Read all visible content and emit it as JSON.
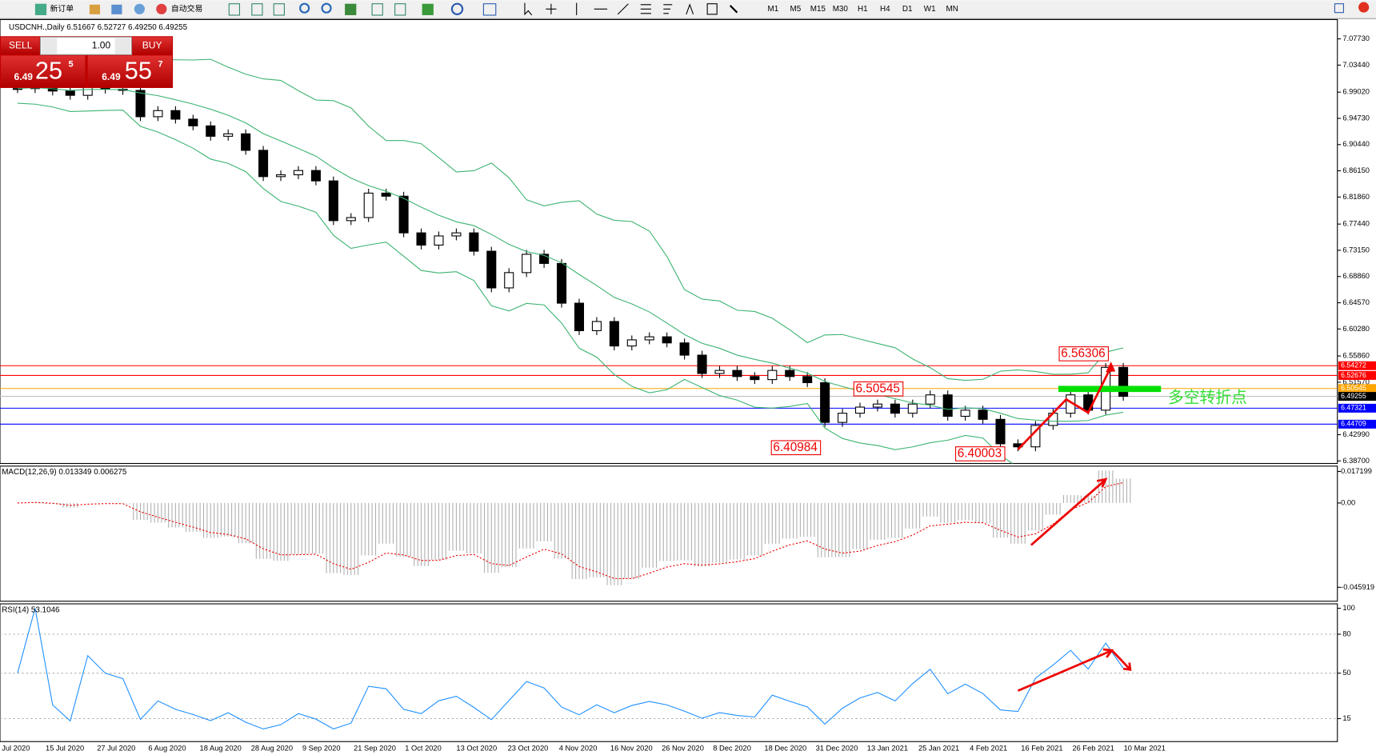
{
  "toolbar": {
    "new_order": "新订单",
    "auto_trading": "自动交易",
    "timeframes": [
      "M1",
      "M5",
      "M15",
      "M30",
      "H1",
      "H4",
      "D1",
      "W1",
      "MN"
    ]
  },
  "trade_panel": {
    "sell": "SELL",
    "buy": "BUY",
    "lot": "1.00",
    "bid_big": "6.49",
    "bid_pips": "25",
    "bid_frac": "5",
    "ask_big": "6.49",
    "ask_pips": "55",
    "ask_frac": "7"
  },
  "chart": {
    "header": "USDCNH.,Daily  6.51667 6.52727 6.49250 6.49255",
    "ylim": [
      6.3828,
      7.1089
    ],
    "price_ticks": [
      {
        "value": 7.0773,
        "label": "7.07730"
      },
      {
        "value": 7.0344,
        "label": "7.03440"
      },
      {
        "value": 6.9902,
        "label": "6.99020"
      },
      {
        "value": 6.9473,
        "label": "6.94730"
      },
      {
        "value": 6.9044,
        "label": "6.90440"
      },
      {
        "value": 6.8615,
        "label": "6.86150"
      },
      {
        "value": 6.8186,
        "label": "6.81860"
      },
      {
        "value": 6.7744,
        "label": "6.77440"
      },
      {
        "value": 6.7315,
        "label": "6.73150"
      },
      {
        "value": 6.6886,
        "label": "6.68860"
      },
      {
        "value": 6.6457,
        "label": "6.64570"
      },
      {
        "value": 6.6028,
        "label": "6.60280"
      },
      {
        "value": 6.5586,
        "label": "6.55860"
      },
      {
        "value": 6.5157,
        "label": "6.51570"
      },
      {
        "value": 6.4299,
        "label": "6.42990"
      },
      {
        "value": 6.387,
        "label": "6.38700"
      }
    ],
    "levels": [
      {
        "value": 6.54272,
        "label": "6.54272",
        "color": "#ff0000"
      },
      {
        "value": 6.52676,
        "label": "6.52676",
        "color": "#ff0000"
      },
      {
        "value": 6.50545,
        "label": "6.50545",
        "color": "#ffa500"
      },
      {
        "value": 6.49255,
        "label": "6.49255",
        "color": "#c0c0c0"
      },
      {
        "value": 6.47321,
        "label": "6.47321",
        "color": "#0000ff"
      },
      {
        "value": 6.44709,
        "label": "6.44709",
        "color": "#0000ff"
      }
    ],
    "closes": [
      6.996,
      6.999,
      6.992,
      6.985,
      7.001,
      6.995,
      6.993,
      6.95,
      6.96,
      6.946,
      6.935,
      6.918,
      6.922,
      6.895,
      6.852,
      6.855,
      6.862,
      6.845,
      6.78,
      6.785,
      6.825,
      6.82,
      6.76,
      6.74,
      6.755,
      6.76,
      6.73,
      6.67,
      6.695,
      6.725,
      6.71,
      6.645,
      6.6,
      6.615,
      6.575,
      6.585,
      6.59,
      6.58,
      6.56,
      6.53,
      6.535,
      6.525,
      6.52,
      6.535,
      6.525,
      6.515,
      6.45,
      6.465,
      6.475,
      6.48,
      6.465,
      6.48,
      6.495,
      6.46,
      6.47,
      6.455,
      6.415,
      6.41,
      6.445,
      6.465,
      6.495,
      6.47,
      6.54,
      6.4926
    ],
    "annotations": [
      {
        "value": 6.56306,
        "label": "6.56306"
      },
      {
        "value": 6.50545,
        "label": "6.50545"
      },
      {
        "value": 6.40984,
        "label": "6.40984"
      },
      {
        "value": 6.40003,
        "label": "6.40003"
      }
    ],
    "note": "多空转折点",
    "dates": [
      "Jul 2020",
      "15 Jul 2020",
      "27 Jul 2020",
      "6 Aug 2020",
      "18 Aug 2020",
      "28 Aug 2020",
      "9 Sep 2020",
      "21 Sep 2020",
      "1 Oct 2020",
      "13 Oct 2020",
      "23 Oct 2020",
      "4 Nov 2020",
      "16 Nov 2020",
      "26 Nov 2020",
      "8 Dec 2020",
      "18 Dec 2020",
      "31 Dec 2020",
      "13 Jan 2021",
      "25 Jan 2021",
      "4 Feb 2021",
      "16 Feb 2021",
      "26 Feb 2021",
      "10 Mar 2021"
    ],
    "macd": {
      "label": "MACD(12,26,9) 0.013349 0.006275",
      "ylim": [
        -0.0535,
        0.0201
      ],
      "ticks": [
        {
          "value": 0.017199,
          "label": "0.017199"
        },
        {
          "value": 0,
          "label": "0.00"
        },
        {
          "value": -0.045919,
          "label": "-0.045919"
        }
      ]
    },
    "rsi": {
      "label": "RSI(14) 53.1046",
      "ylim": [
        -2.7,
        103.4
      ],
      "ticks": [
        100,
        80,
        50,
        15
      ],
      "levels": [
        80,
        50,
        15
      ]
    }
  }
}
